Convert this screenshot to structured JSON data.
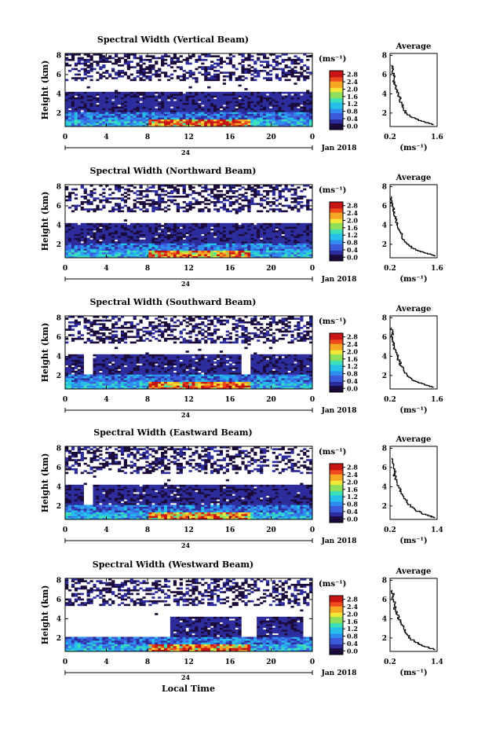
{
  "figure": {
    "date_label": "Jan 2018",
    "day_label": "24",
    "xaxis_title": "Local Time",
    "colorbar_unit": "(ms⁻¹)",
    "colorbar_ticks": [
      "0.0",
      "0.4",
      "0.8",
      "1.2",
      "1.6",
      "2.0",
      "2.4",
      "2.8"
    ],
    "average_title": "Average",
    "average_unit": "(ms⁻¹)"
  },
  "colors": {
    "scale": [
      "#1a0a3a",
      "#2c2c9c",
      "#3b5bdb",
      "#2f8cf0",
      "#25c0e8",
      "#3de0b8",
      "#8ee05a",
      "#f2e83a",
      "#f5a623",
      "#ee4a1e",
      "#c81414"
    ],
    "background": "#ffffff"
  },
  "chart_data": [
    {
      "type": "heatmap",
      "title": "Spectral Width (Vertical Beam)",
      "xlabel": "Local Time",
      "ylabel": "Height (km)",
      "x_ticks": [
        "0",
        "4",
        "8",
        "12",
        "16",
        "20",
        "0"
      ],
      "y_ticks": [
        "2",
        "4",
        "6",
        "8"
      ],
      "xlim": [
        0,
        24
      ],
      "ylim": [
        0.6,
        8.2
      ],
      "clim": [
        0.0,
        2.8
      ],
      "avg_xlim": [
        0.2,
        1.6
      ],
      "avg_xticks": [
        "0.2",
        "1.6"
      ],
      "avg_ylim": [
        0.6,
        8.2
      ],
      "avg_yticks": [
        "2",
        "4",
        "6",
        "8"
      ],
      "average_profile": [
        {
          "height": 0.8,
          "value": 1.5
        },
        {
          "height": 1.0,
          "value": 1.35
        },
        {
          "height": 1.3,
          "value": 1.05
        },
        {
          "height": 1.6,
          "value": 0.85
        },
        {
          "height": 2.0,
          "value": 0.7
        },
        {
          "height": 2.5,
          "value": 0.6
        },
        {
          "height": 3.0,
          "value": 0.55
        },
        {
          "height": 3.5,
          "value": 0.5
        },
        {
          "height": 4.0,
          "value": 0.45
        },
        {
          "height": 4.5,
          "value": 0.4
        },
        {
          "height": 5.0,
          "value": 0.35
        },
        {
          "height": 5.5,
          "value": 0.32
        },
        {
          "height": 6.0,
          "value": 0.3
        },
        {
          "height": 6.5,
          "value": 0.28
        },
        {
          "height": 7.0,
          "value": 0.25
        }
      ]
    },
    {
      "type": "heatmap",
      "title": "Spectral Width (Northward Beam)",
      "xlabel": "Local Time",
      "ylabel": "Height (km)",
      "x_ticks": [
        "0",
        "4",
        "8",
        "12",
        "16",
        "20",
        "0"
      ],
      "y_ticks": [
        "2",
        "4",
        "6",
        "8"
      ],
      "xlim": [
        0,
        24
      ],
      "ylim": [
        0.6,
        8.2
      ],
      "clim": [
        0.0,
        2.8
      ],
      "avg_xlim": [
        0.2,
        1.6
      ],
      "avg_xticks": [
        "0.2",
        "1.6"
      ],
      "avg_ylim": [
        0.6,
        8.2
      ],
      "avg_yticks": [
        "2",
        "4",
        "6",
        "8"
      ],
      "average_profile": [
        {
          "height": 0.8,
          "value": 1.55
        },
        {
          "height": 1.0,
          "value": 1.4
        },
        {
          "height": 1.3,
          "value": 1.1
        },
        {
          "height": 1.6,
          "value": 0.9
        },
        {
          "height": 2.0,
          "value": 0.75
        },
        {
          "height": 2.5,
          "value": 0.62
        },
        {
          "height": 3.0,
          "value": 0.55
        },
        {
          "height": 3.5,
          "value": 0.48
        },
        {
          "height": 4.0,
          "value": 0.42
        },
        {
          "height": 4.5,
          "value": 0.38
        },
        {
          "height": 5.0,
          "value": 0.33
        },
        {
          "height": 5.5,
          "value": 0.3
        },
        {
          "height": 6.0,
          "value": 0.28
        },
        {
          "height": 6.5,
          "value": 0.26
        },
        {
          "height": 7.0,
          "value": 0.24
        }
      ]
    },
    {
      "type": "heatmap",
      "title": "Spectral Width (Southward Beam)",
      "xlabel": "Local Time",
      "ylabel": "Height (km)",
      "x_ticks": [
        "0",
        "4",
        "8",
        "12",
        "16",
        "20",
        "0"
      ],
      "y_ticks": [
        "2",
        "4",
        "6",
        "8"
      ],
      "xlim": [
        0,
        24
      ],
      "ylim": [
        0.6,
        8.2
      ],
      "clim": [
        0.0,
        2.8
      ],
      "avg_xlim": [
        0.2,
        1.6
      ],
      "avg_xticks": [
        "0.2",
        "1.6"
      ],
      "avg_ylim": [
        0.6,
        8.2
      ],
      "avg_yticks": [
        "2",
        "4",
        "6",
        "8"
      ],
      "average_profile": [
        {
          "height": 0.8,
          "value": 1.5
        },
        {
          "height": 1.0,
          "value": 1.3
        },
        {
          "height": 1.3,
          "value": 1.05
        },
        {
          "height": 1.6,
          "value": 0.85
        },
        {
          "height": 2.0,
          "value": 0.72
        },
        {
          "height": 2.5,
          "value": 0.62
        },
        {
          "height": 3.0,
          "value": 0.55
        },
        {
          "height": 3.5,
          "value": 0.48
        },
        {
          "height": 4.0,
          "value": 0.42
        },
        {
          "height": 4.5,
          "value": 0.37
        },
        {
          "height": 5.0,
          "value": 0.33
        },
        {
          "height": 5.5,
          "value": 0.3
        },
        {
          "height": 6.0,
          "value": 0.28
        },
        {
          "height": 6.5,
          "value": 0.26
        },
        {
          "height": 7.0,
          "value": 0.24
        }
      ]
    },
    {
      "type": "heatmap",
      "title": "Spectral Width (Eastward Beam)",
      "xlabel": "Local Time",
      "ylabel": "Height (km)",
      "x_ticks": [
        "0",
        "4",
        "8",
        "12",
        "16",
        "20",
        "0"
      ],
      "y_ticks": [
        "2",
        "4",
        "6",
        "8"
      ],
      "xlim": [
        0,
        24
      ],
      "ylim": [
        0.6,
        8.2
      ],
      "clim": [
        0.0,
        2.8
      ],
      "avg_xlim": [
        0.2,
        1.4
      ],
      "avg_xticks": [
        "0.2",
        "1.4"
      ],
      "avg_ylim": [
        0.6,
        8.2
      ],
      "avg_yticks": [
        "2",
        "4",
        "6",
        "8"
      ],
      "average_profile": [
        {
          "height": 0.8,
          "value": 1.35
        },
        {
          "height": 1.0,
          "value": 1.2
        },
        {
          "height": 1.3,
          "value": 1.0
        },
        {
          "height": 1.6,
          "value": 0.85
        },
        {
          "height": 2.0,
          "value": 0.72
        },
        {
          "height": 2.5,
          "value": 0.62
        },
        {
          "height": 3.0,
          "value": 0.55
        },
        {
          "height": 3.5,
          "value": 0.48
        },
        {
          "height": 4.0,
          "value": 0.42
        },
        {
          "height": 4.5,
          "value": 0.38
        },
        {
          "height": 5.0,
          "value": 0.34
        },
        {
          "height": 5.5,
          "value": 0.31
        },
        {
          "height": 6.0,
          "value": 0.29
        },
        {
          "height": 6.5,
          "value": 0.27
        },
        {
          "height": 7.0,
          "value": 0.25
        }
      ]
    },
    {
      "type": "heatmap",
      "title": "Spectral Width (Westward Beam)",
      "xlabel": "Local Time",
      "ylabel": "Height (km)",
      "x_ticks": [
        "0",
        "4",
        "8",
        "12",
        "16",
        "20",
        "0"
      ],
      "y_ticks": [
        "2",
        "4",
        "6",
        "8"
      ],
      "xlim": [
        0,
        24
      ],
      "ylim": [
        0.6,
        8.2
      ],
      "clim": [
        0.0,
        2.8
      ],
      "avg_xlim": [
        0.2,
        1.4
      ],
      "avg_xticks": [
        "0.2",
        "1.4"
      ],
      "avg_ylim": [
        0.6,
        8.2
      ],
      "avg_yticks": [
        "2",
        "4",
        "6",
        "8"
      ],
      "average_profile": [
        {
          "height": 0.8,
          "value": 1.35
        },
        {
          "height": 1.0,
          "value": 1.2
        },
        {
          "height": 1.3,
          "value": 1.0
        },
        {
          "height": 1.6,
          "value": 0.85
        },
        {
          "height": 2.0,
          "value": 0.72
        },
        {
          "height": 2.5,
          "value": 0.62
        },
        {
          "height": 3.0,
          "value": 0.55
        },
        {
          "height": 3.5,
          "value": 0.48
        },
        {
          "height": 4.0,
          "value": 0.42
        },
        {
          "height": 4.5,
          "value": 0.38
        },
        {
          "height": 5.0,
          "value": 0.34
        },
        {
          "height": 5.5,
          "value": 0.31
        },
        {
          "height": 6.0,
          "value": 0.29
        },
        {
          "height": 6.5,
          "value": 0.27
        },
        {
          "height": 7.0,
          "value": 0.25
        }
      ]
    }
  ]
}
